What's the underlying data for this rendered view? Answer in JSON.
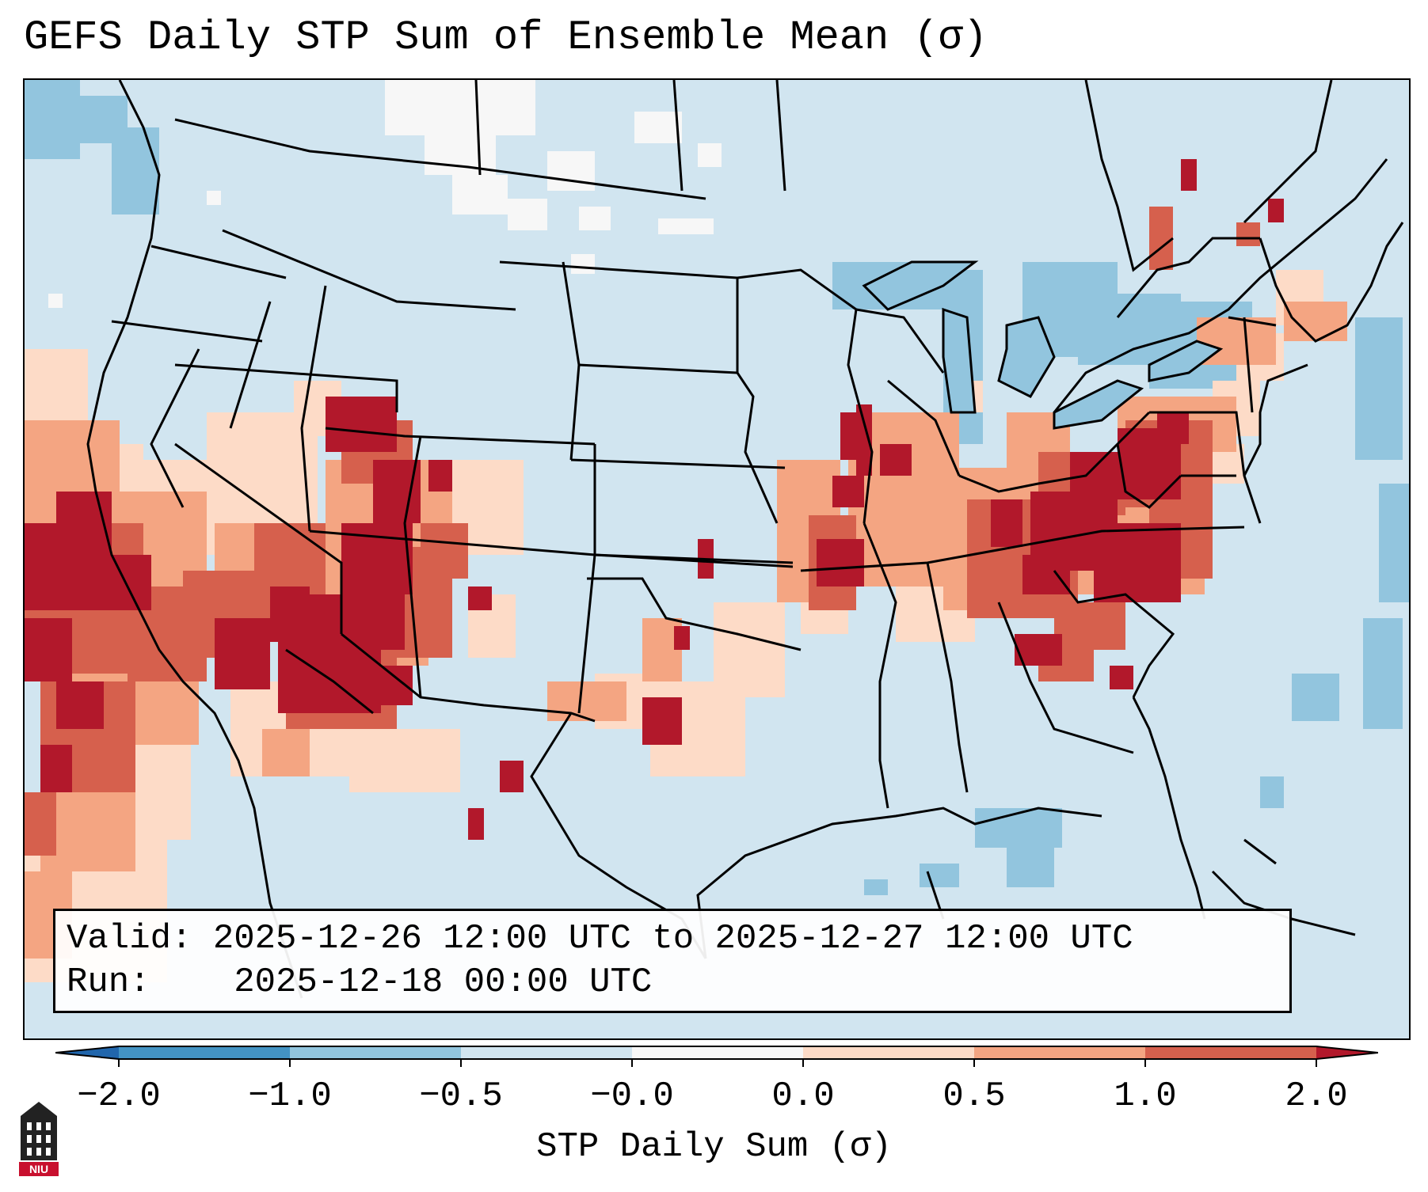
{
  "title": "GEFS Daily STP Sum of Ensemble Mean (σ)",
  "info": {
    "valid_label": "Valid:",
    "valid_value": "2025-12-26 12:00 UTC to 2025-12-27 12:00 UTC",
    "run_label": "Run:",
    "run_value": "2025-12-18 00:00 UTC"
  },
  "colorbar": {
    "label": "STP Daily Sum (σ)",
    "ticks": [
      "−2.0",
      "−1.0",
      "−0.5",
      "−0.0",
      "0.0",
      "0.5",
      "1.0",
      "2.0"
    ],
    "colors": [
      "#4393c3",
      "#92c5de",
      "#d1e5f0",
      "#f7f7f7",
      "#fddbc7",
      "#f4a582",
      "#d6604d",
      "#b2182b"
    ],
    "extend_low_color": "#2166ac",
    "extend_high_color": "#b2182b"
  },
  "logo": {
    "text": "NIU",
    "color": "#c8102e"
  },
  "map": {
    "background_color": "#d1e5f0",
    "outline_color": "#000000"
  }
}
